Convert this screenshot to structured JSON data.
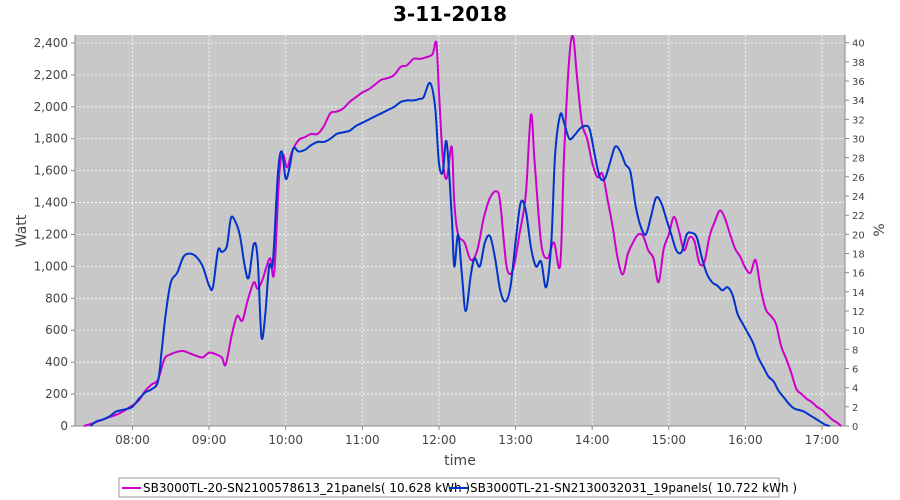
{
  "chart_data": {
    "type": "line",
    "title": "3-11-2018",
    "xlabel": "time",
    "ylabel": "Watt",
    "ylabel_right": "%",
    "xlim": [
      "07:15",
      "17:18"
    ],
    "ylim": [
      0,
      2450
    ],
    "ylim_right": [
      0,
      40.8
    ],
    "x_ticks": [
      "08:00",
      "09:00",
      "10:00",
      "11:00",
      "12:00",
      "13:00",
      "14:00",
      "15:00",
      "16:00",
      "17:00"
    ],
    "y_ticks": [
      "0",
      "200",
      "400",
      "600",
      "800",
      "1,000",
      "1,200",
      "1,400",
      "1,600",
      "1,800",
      "2,000",
      "2,200",
      "2,400"
    ],
    "y_ticks_right": [
      "0",
      "2",
      "4",
      "6",
      "8",
      "10",
      "12",
      "14",
      "16",
      "18",
      "20",
      "22",
      "24",
      "26",
      "28",
      "30",
      "32",
      "34",
      "36",
      "38",
      "40"
    ],
    "grid": true,
    "legend_position": "bottom",
    "background": "#c8c8c8",
    "series": [
      {
        "name": "SB3000TL-20-SN2100578613_21panels( 10.628 kWh )",
        "color": "#cc00cc",
        "points": [
          [
            "07:22",
            0
          ],
          [
            "07:30",
            20
          ],
          [
            "07:40",
            50
          ],
          [
            "07:50",
            80
          ],
          [
            "08:00",
            130
          ],
          [
            "08:05",
            160
          ],
          [
            "08:10",
            220
          ],
          [
            "08:15",
            260
          ],
          [
            "08:20",
            290
          ],
          [
            "08:25",
            420
          ],
          [
            "08:30",
            450
          ],
          [
            "08:35",
            465
          ],
          [
            "08:40",
            470
          ],
          [
            "08:45",
            455
          ],
          [
            "08:50",
            440
          ],
          [
            "08:55",
            430
          ],
          [
            "09:00",
            460
          ],
          [
            "09:05",
            450
          ],
          [
            "09:10",
            430
          ],
          [
            "09:13",
            385
          ],
          [
            "09:18",
            580
          ],
          [
            "09:22",
            690
          ],
          [
            "09:26",
            660
          ],
          [
            "09:30",
            780
          ],
          [
            "09:35",
            900
          ],
          [
            "09:38",
            860
          ],
          [
            "09:42",
            920
          ],
          [
            "09:45",
            1000
          ],
          [
            "09:48",
            1050
          ],
          [
            "09:51",
            960
          ],
          [
            "09:55",
            1580
          ],
          [
            "09:58",
            1700
          ],
          [
            "10:01",
            1620
          ],
          [
            "10:05",
            1720
          ],
          [
            "10:10",
            1790
          ],
          [
            "10:15",
            1810
          ],
          [
            "10:20",
            1830
          ],
          [
            "10:25",
            1830
          ],
          [
            "10:30",
            1880
          ],
          [
            "10:35",
            1960
          ],
          [
            "10:40",
            1970
          ],
          [
            "10:45",
            1990
          ],
          [
            "10:50",
            2030
          ],
          [
            "10:55",
            2060
          ],
          [
            "11:00",
            2090
          ],
          [
            "11:05",
            2110
          ],
          [
            "11:10",
            2140
          ],
          [
            "11:15",
            2170
          ],
          [
            "11:20",
            2180
          ],
          [
            "11:25",
            2200
          ],
          [
            "11:30",
            2250
          ],
          [
            "11:35",
            2260
          ],
          [
            "11:40",
            2300
          ],
          [
            "11:45",
            2300
          ],
          [
            "11:50",
            2310
          ],
          [
            "11:55",
            2330
          ],
          [
            "11:58",
            2400
          ],
          [
            "12:00",
            2100
          ],
          [
            "12:03",
            1680
          ],
          [
            "12:06",
            1550
          ],
          [
            "12:10",
            1750
          ],
          [
            "12:12",
            1400
          ],
          [
            "12:15",
            1200
          ],
          [
            "12:20",
            1150
          ],
          [
            "12:25",
            1040
          ],
          [
            "12:30",
            1100
          ],
          [
            "12:35",
            1300
          ],
          [
            "12:40",
            1430
          ],
          [
            "12:45",
            1470
          ],
          [
            "12:48",
            1400
          ],
          [
            "12:53",
            1000
          ],
          [
            "12:58",
            980
          ],
          [
            "13:03",
            1200
          ],
          [
            "13:08",
            1450
          ],
          [
            "13:12",
            1950
          ],
          [
            "13:15",
            1650
          ],
          [
            "13:20",
            1150
          ],
          [
            "13:25",
            1050
          ],
          [
            "13:30",
            1150
          ],
          [
            "13:35",
            1010
          ],
          [
            "13:38",
            1700
          ],
          [
            "13:42",
            2300
          ],
          [
            "13:45",
            2440
          ],
          [
            "13:48",
            2200
          ],
          [
            "13:52",
            1900
          ],
          [
            "13:56",
            1800
          ],
          [
            "14:00",
            1650
          ],
          [
            "14:04",
            1560
          ],
          [
            "14:08",
            1580
          ],
          [
            "14:12",
            1420
          ],
          [
            "14:16",
            1250
          ],
          [
            "14:20",
            1050
          ],
          [
            "14:24",
            950
          ],
          [
            "14:28",
            1080
          ],
          [
            "14:32",
            1150
          ],
          [
            "14:36",
            1200
          ],
          [
            "14:40",
            1190
          ],
          [
            "14:44",
            1100
          ],
          [
            "14:48",
            1050
          ],
          [
            "14:52",
            900
          ],
          [
            "14:56",
            1110
          ],
          [
            "15:00",
            1200
          ],
          [
            "15:04",
            1310
          ],
          [
            "15:08",
            1220
          ],
          [
            "15:12",
            1100
          ],
          [
            "15:16",
            1180
          ],
          [
            "15:20",
            1160
          ],
          [
            "15:24",
            1020
          ],
          [
            "15:28",
            1030
          ],
          [
            "15:32",
            1190
          ],
          [
            "15:36",
            1280
          ],
          [
            "15:40",
            1350
          ],
          [
            "15:44",
            1300
          ],
          [
            "15:48",
            1200
          ],
          [
            "15:52",
            1110
          ],
          [
            "15:56",
            1060
          ],
          [
            "16:00",
            990
          ],
          [
            "16:04",
            960
          ],
          [
            "16:08",
            1040
          ],
          [
            "16:12",
            860
          ],
          [
            "16:16",
            730
          ],
          [
            "16:20",
            690
          ],
          [
            "16:24",
            640
          ],
          [
            "16:28",
            500
          ],
          [
            "16:32",
            420
          ],
          [
            "16:36",
            330
          ],
          [
            "16:40",
            230
          ],
          [
            "16:44",
            200
          ],
          [
            "16:48",
            170
          ],
          [
            "16:52",
            150
          ],
          [
            "16:56",
            120
          ],
          [
            "17:00",
            100
          ],
          [
            "17:04",
            70
          ],
          [
            "17:08",
            40
          ],
          [
            "17:12",
            20
          ],
          [
            "17:15",
            0
          ]
        ]
      },
      {
        "name": "SB3000TL-21-SN2130032031_19panels( 10.722 kWh )",
        "color": "#0033cc",
        "points": [
          [
            "07:27",
            0
          ],
          [
            "07:32",
            30
          ],
          [
            "07:37",
            40
          ],
          [
            "07:42",
            60
          ],
          [
            "07:47",
            90
          ],
          [
            "07:52",
            100
          ],
          [
            "07:57",
            110
          ],
          [
            "08:00",
            120
          ],
          [
            "08:05",
            170
          ],
          [
            "08:10",
            210
          ],
          [
            "08:15",
            230
          ],
          [
            "08:20",
            280
          ],
          [
            "08:23",
            480
          ],
          [
            "08:26",
            700
          ],
          [
            "08:30",
            900
          ],
          [
            "08:35",
            960
          ],
          [
            "08:40",
            1060
          ],
          [
            "08:45",
            1080
          ],
          [
            "08:50",
            1060
          ],
          [
            "08:55",
            1000
          ],
          [
            "09:00",
            880
          ],
          [
            "09:03",
            870
          ],
          [
            "09:07",
            1100
          ],
          [
            "09:10",
            1090
          ],
          [
            "09:14",
            1130
          ],
          [
            "09:17",
            1300
          ],
          [
            "09:20",
            1290
          ],
          [
            "09:24",
            1200
          ],
          [
            "09:28",
            1000
          ],
          [
            "09:31",
            930
          ],
          [
            "09:35",
            1140
          ],
          [
            "09:38",
            1050
          ],
          [
            "09:41",
            560
          ],
          [
            "09:44",
            700
          ],
          [
            "09:47",
            1000
          ],
          [
            "09:50",
            1030
          ],
          [
            "09:54",
            1590
          ],
          [
            "09:57",
            1720
          ],
          [
            "10:00",
            1550
          ],
          [
            "10:03",
            1620
          ],
          [
            "10:06",
            1740
          ],
          [
            "10:10",
            1720
          ],
          [
            "10:15",
            1730
          ],
          [
            "10:20",
            1760
          ],
          [
            "10:25",
            1780
          ],
          [
            "10:30",
            1780
          ],
          [
            "10:35",
            1800
          ],
          [
            "10:40",
            1830
          ],
          [
            "10:45",
            1840
          ],
          [
            "10:50",
            1850
          ],
          [
            "10:55",
            1880
          ],
          [
            "11:00",
            1900
          ],
          [
            "11:05",
            1920
          ],
          [
            "11:10",
            1940
          ],
          [
            "11:15",
            1960
          ],
          [
            "11:20",
            1980
          ],
          [
            "11:25",
            2000
          ],
          [
            "11:30",
            2030
          ],
          [
            "11:35",
            2040
          ],
          [
            "11:40",
            2040
          ],
          [
            "11:45",
            2050
          ],
          [
            "11:48",
            2060
          ],
          [
            "11:53",
            2150
          ],
          [
            "11:57",
            2000
          ],
          [
            "12:00",
            1650
          ],
          [
            "12:03",
            1590
          ],
          [
            "12:06",
            1780
          ],
          [
            "12:10",
            1320
          ],
          [
            "12:12",
            1000
          ],
          [
            "12:15",
            1200
          ],
          [
            "12:18",
            950
          ],
          [
            "12:21",
            720
          ],
          [
            "12:25",
            950
          ],
          [
            "12:28",
            1050
          ],
          [
            "12:32",
            1000
          ],
          [
            "12:36",
            1150
          ],
          [
            "12:40",
            1190
          ],
          [
            "12:44",
            1050
          ],
          [
            "12:48",
            850
          ],
          [
            "12:52",
            780
          ],
          [
            "12:56",
            870
          ],
          [
            "13:00",
            1150
          ],
          [
            "13:04",
            1400
          ],
          [
            "13:08",
            1350
          ],
          [
            "13:12",
            1120
          ],
          [
            "13:16",
            1000
          ],
          [
            "13:20",
            1030
          ],
          [
            "13:24",
            870
          ],
          [
            "13:28",
            1150
          ],
          [
            "13:31",
            1700
          ],
          [
            "13:35",
            1950
          ],
          [
            "13:38",
            1900
          ],
          [
            "13:42",
            1800
          ],
          [
            "13:46",
            1820
          ],
          [
            "13:50",
            1860
          ],
          [
            "13:54",
            1880
          ],
          [
            "13:58",
            1860
          ],
          [
            "14:02",
            1700
          ],
          [
            "14:06",
            1560
          ],
          [
            "14:10",
            1550
          ],
          [
            "14:14",
            1650
          ],
          [
            "14:18",
            1750
          ],
          [
            "14:22",
            1720
          ],
          [
            "14:26",
            1640
          ],
          [
            "14:30",
            1590
          ],
          [
            "14:34",
            1380
          ],
          [
            "14:38",
            1250
          ],
          [
            "14:42",
            1200
          ],
          [
            "14:46",
            1310
          ],
          [
            "14:50",
            1430
          ],
          [
            "14:54",
            1400
          ],
          [
            "14:58",
            1300
          ],
          [
            "15:02",
            1200
          ],
          [
            "15:06",
            1100
          ],
          [
            "15:10",
            1090
          ],
          [
            "15:14",
            1200
          ],
          [
            "15:18",
            1210
          ],
          [
            "15:22",
            1180
          ],
          [
            "15:26",
            1050
          ],
          [
            "15:30",
            950
          ],
          [
            "15:34",
            900
          ],
          [
            "15:38",
            880
          ],
          [
            "15:42",
            850
          ],
          [
            "15:46",
            870
          ],
          [
            "15:50",
            820
          ],
          [
            "15:54",
            700
          ],
          [
            "15:58",
            640
          ],
          [
            "16:02",
            580
          ],
          [
            "16:06",
            520
          ],
          [
            "16:10",
            430
          ],
          [
            "16:14",
            370
          ],
          [
            "16:18",
            310
          ],
          [
            "16:22",
            280
          ],
          [
            "16:26",
            220
          ],
          [
            "16:30",
            180
          ],
          [
            "16:34",
            140
          ],
          [
            "16:38",
            110
          ],
          [
            "16:42",
            100
          ],
          [
            "16:46",
            90
          ],
          [
            "16:50",
            70
          ],
          [
            "16:54",
            50
          ],
          [
            "16:58",
            30
          ],
          [
            "17:02",
            10
          ],
          [
            "17:06",
            0
          ]
        ]
      }
    ]
  }
}
